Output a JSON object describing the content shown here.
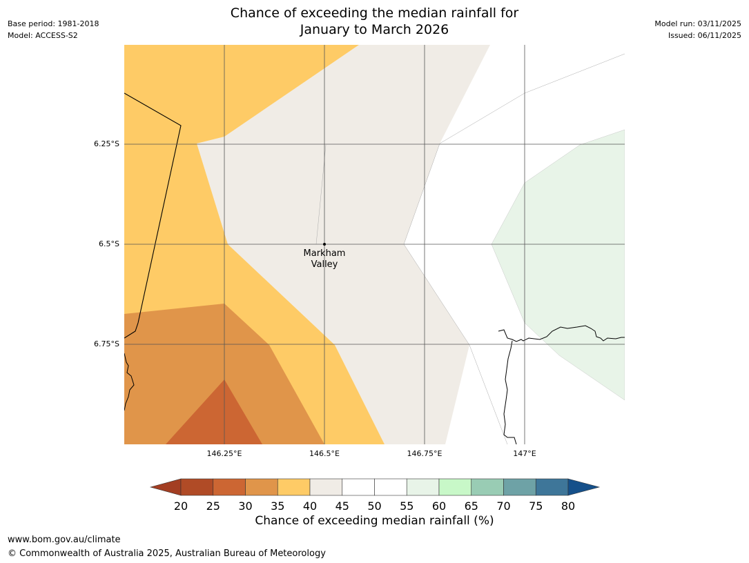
{
  "header": {
    "title_line1": "Chance of exceeding the median rainfall for",
    "title_line2": "January to March 2026",
    "base_period": "Base period: 1981-2018",
    "model": "Model: ACCESS-S2",
    "model_run": "Model run: 03/11/2025",
    "issued": "Issued: 06/11/2025"
  },
  "map": {
    "lat_labels": [
      "6.25°S",
      "6.5°S",
      "6.75°S"
    ],
    "lon_labels": [
      "146.25°E",
      "146.5°E",
      "146.75°E",
      "147°E"
    ],
    "place_line1": "Markham",
    "place_line2": "Valley",
    "colors": {
      "c25_30": "#cc6633",
      "c30_35": "#e0954a",
      "c35_40": "#fecb66",
      "c40_45": "#f0ece6",
      "c55_60": "#e8f4e8",
      "coast": "#000000",
      "grid": "#555555"
    }
  },
  "colorbar": {
    "title": "Chance of exceeding median rainfall (%)",
    "tick_labels": [
      "20",
      "25",
      "30",
      "35",
      "40",
      "45",
      "50",
      "55",
      "60",
      "65",
      "70",
      "75",
      "80"
    ],
    "colors": [
      "#a33e22",
      "#b04b26",
      "#cc6633",
      "#e0954a",
      "#fecb66",
      "#f0ece6",
      "#ffffff",
      "#ffffff",
      "#e8f4e8",
      "#c8f8c8",
      "#99ccb4",
      "#6ea2a6",
      "#3e7699",
      "#15508a"
    ]
  },
  "footer": {
    "url": "www.bom.gov.au/climate",
    "copyright": "© Commonwealth of Australia 2025, Australian Bureau of Meteorology"
  }
}
